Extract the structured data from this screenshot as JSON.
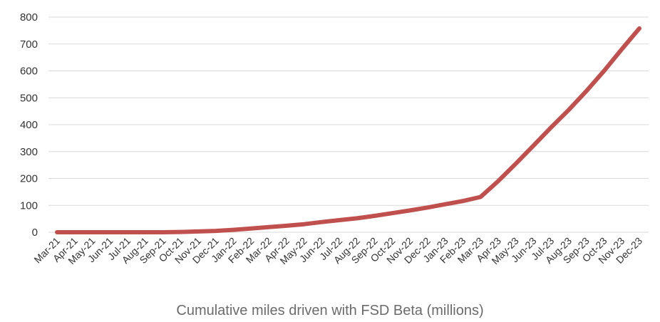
{
  "chart_data": {
    "type": "line",
    "title": "",
    "caption": "Cumulative miles driven with FSD Beta (millions)",
    "xlabel": "",
    "ylabel": "",
    "ylim": [
      0,
      800
    ],
    "yticks": [
      0,
      100,
      200,
      300,
      400,
      500,
      600,
      700,
      800
    ],
    "grid": true,
    "categories": [
      "Mar-21",
      "Apr-21",
      "May-21",
      "Jun-21",
      "Jul-21",
      "Aug-21",
      "Sep-21",
      "Oct-21",
      "Nov-21",
      "Dec-21",
      "Jan-22",
      "Feb-22",
      "Mar-22",
      "Apr-22",
      "May-22",
      "Jun-22",
      "Jul-22",
      "Aug-22",
      "Sep-22",
      "Oct-22",
      "Nov-22",
      "Dec-22",
      "Jan-23",
      "Feb-23",
      "Mar-23",
      "Apr-23",
      "May-23",
      "Jun-23",
      "Jul-23",
      "Aug-23",
      "Sep-23",
      "Oct-23",
      "Nov-23",
      "Dec-23"
    ],
    "series": [
      {
        "name": "",
        "color": "#c0504d",
        "values": [
          0,
          0,
          0,
          0,
          0,
          0,
          0,
          1,
          3,
          5,
          9,
          14,
          19,
          24,
          30,
          38,
          45,
          52,
          61,
          71,
          81,
          92,
          104,
          116,
          131,
          190,
          255,
          322,
          390,
          455,
          525,
          600,
          680,
          758
        ]
      }
    ]
  }
}
